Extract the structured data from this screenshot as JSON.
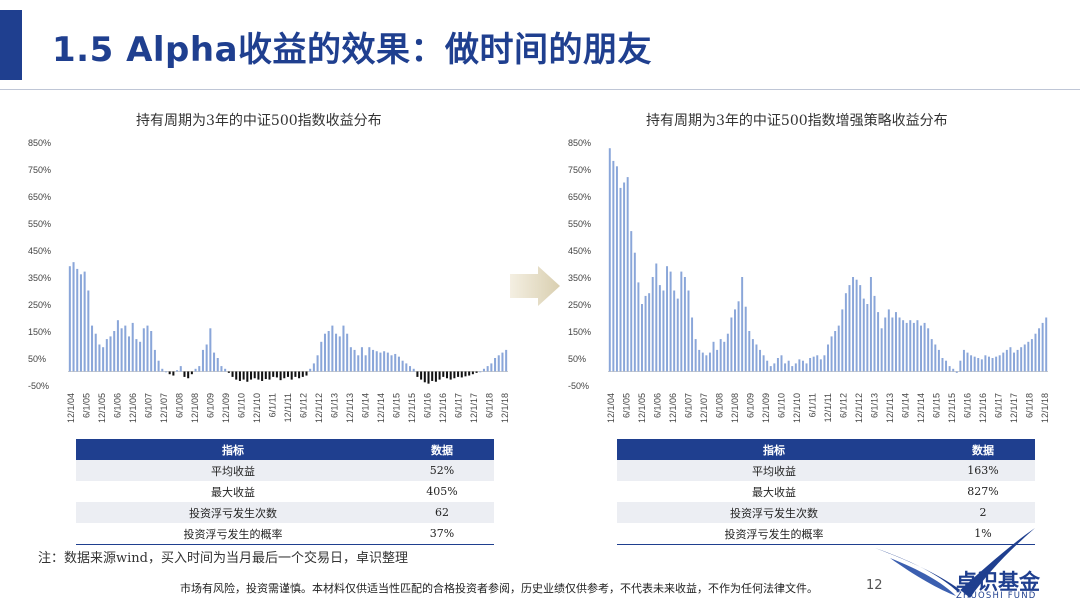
{
  "header": {
    "title": "1.5 Alpha收益的效果：做时间的朋友"
  },
  "chart_data": [
    {
      "type": "bar",
      "title": "持有周期为3年的中证500指数收益分布",
      "xlabel": "",
      "ylabel": "",
      "ylim": [
        -50,
        850
      ],
      "yticks": [
        "850%",
        "750%",
        "650%",
        "550%",
        "450%",
        "350%",
        "250%",
        "150%",
        "50%",
        "-50%"
      ],
      "x_ticks": [
        "12/1/04",
        "6/1/05",
        "12/1/05",
        "6/1/06",
        "12/1/06",
        "6/1/07",
        "12/1/07",
        "6/1/08",
        "12/1/08",
        "6/1/09",
        "12/1/09",
        "6/1/10",
        "12/1/10",
        "6/1/11",
        "12/1/11",
        "6/1/12",
        "12/1/12",
        "6/1/13",
        "12/1/13",
        "6/1/14",
        "12/1/14",
        "6/1/15",
        "12/1/15",
        "6/1/16",
        "12/1/16",
        "6/1/17",
        "12/1/17",
        "6/1/18",
        "12/1/18"
      ],
      "values": [
        390,
        405,
        380,
        360,
        370,
        300,
        170,
        140,
        100,
        90,
        120,
        130,
        150,
        190,
        160,
        170,
        130,
        180,
        120,
        110,
        160,
        170,
        150,
        80,
        40,
        10,
        0,
        -10,
        -15,
        5,
        20,
        -20,
        -25,
        -10,
        10,
        20,
        80,
        100,
        160,
        70,
        50,
        20,
        10,
        -5,
        -20,
        -30,
        -35,
        -30,
        -38,
        -30,
        -25,
        -30,
        -35,
        -28,
        -30,
        -20,
        -22,
        -32,
        -25,
        -20,
        -30,
        -20,
        -25,
        -20,
        -15,
        10,
        30,
        60,
        110,
        140,
        150,
        170,
        140,
        130,
        170,
        140,
        90,
        80,
        60,
        90,
        60,
        90,
        80,
        75,
        70,
        75,
        70,
        60,
        65,
        55,
        40,
        30,
        20,
        10,
        -20,
        -30,
        -40,
        -45,
        -35,
        -38,
        -30,
        -20,
        -25,
        -30,
        -25,
        -20,
        -22,
        -18,
        -15,
        -10,
        -5,
        0,
        10,
        20,
        30,
        50,
        60,
        70,
        80
      ],
      "series_color": "#8aa6d9",
      "negative_color": "#111111"
    },
    {
      "type": "bar",
      "title": "持有周期为3年的中证500指数增强策略收益分布",
      "xlabel": "",
      "ylabel": "",
      "ylim": [
        -50,
        850
      ],
      "yticks": [
        "850%",
        "750%",
        "650%",
        "550%",
        "450%",
        "350%",
        "250%",
        "150%",
        "50%",
        "-50%"
      ],
      "x_ticks": [
        "12/1/04",
        "6/1/05",
        "12/1/05",
        "6/1/06",
        "12/1/06",
        "6/1/07",
        "12/1/07",
        "6/1/08",
        "12/1/08",
        "6/1/09",
        "12/1/09",
        "6/1/10",
        "12/1/10",
        "6/1/11",
        "12/1/11",
        "6/1/12",
        "12/1/12",
        "6/1/13",
        "12/1/13",
        "6/1/14",
        "12/1/14",
        "6/1/15",
        "12/1/15",
        "6/1/16",
        "12/1/16",
        "6/1/17",
        "12/1/17",
        "6/1/18",
        "12/1/18"
      ],
      "values": [
        827,
        780,
        760,
        680,
        700,
        720,
        520,
        440,
        330,
        250,
        280,
        290,
        350,
        400,
        320,
        300,
        390,
        370,
        300,
        270,
        370,
        350,
        300,
        200,
        120,
        80,
        70,
        60,
        70,
        110,
        80,
        120,
        110,
        140,
        200,
        230,
        260,
        350,
        240,
        150,
        120,
        100,
        80,
        60,
        40,
        20,
        30,
        50,
        60,
        30,
        40,
        20,
        30,
        45,
        40,
        30,
        50,
        55,
        60,
        45,
        60,
        100,
        130,
        150,
        170,
        230,
        290,
        320,
        350,
        340,
        320,
        270,
        250,
        350,
        280,
        220,
        160,
        200,
        230,
        200,
        220,
        200,
        190,
        180,
        190,
        180,
        190,
        170,
        180,
        160,
        120,
        100,
        80,
        50,
        40,
        20,
        10,
        -5,
        40,
        80,
        70,
        60,
        55,
        50,
        45,
        60,
        55,
        50,
        55,
        60,
        70,
        80,
        90,
        70,
        80,
        90,
        100,
        110,
        120,
        140,
        160,
        180,
        200
      ]
    }
  ],
  "table_left": {
    "headers": [
      "指标",
      "数据"
    ],
    "rows": [
      [
        "平均收益",
        "52%"
      ],
      [
        "最大收益",
        "405%"
      ],
      [
        "投资浮亏发生次数",
        "62"
      ],
      [
        "投资浮亏发生的概率",
        "37%"
      ]
    ]
  },
  "table_right": {
    "headers": [
      "指标",
      "数据"
    ],
    "rows": [
      [
        "平均收益",
        "163%"
      ],
      [
        "最大收益",
        "827%"
      ],
      [
        "投资浮亏发生次数",
        "2"
      ],
      [
        "投资浮亏发生的概率",
        "1%"
      ]
    ]
  },
  "footer": {
    "note": "注：数据来源wind，买入时间为当月最后一个交易日，卓识整理",
    "disclaimer": "市场有风险，投资需谨慎。本材料仅供适当性匹配的合格投资者参阅，历史业绩仅供参考，不代表未来收益，不作为任何法律文件。",
    "page_number": "12"
  },
  "logo": {
    "cn": "卓识基金",
    "en": "ZHUOSHI FUND",
    "icon": "bird-wing-icon"
  },
  "colors": {
    "brand": "#1f3f8f",
    "bar": "#8aa6d9",
    "negative_bar": "#111111",
    "arrow": "#e7dfc9"
  }
}
